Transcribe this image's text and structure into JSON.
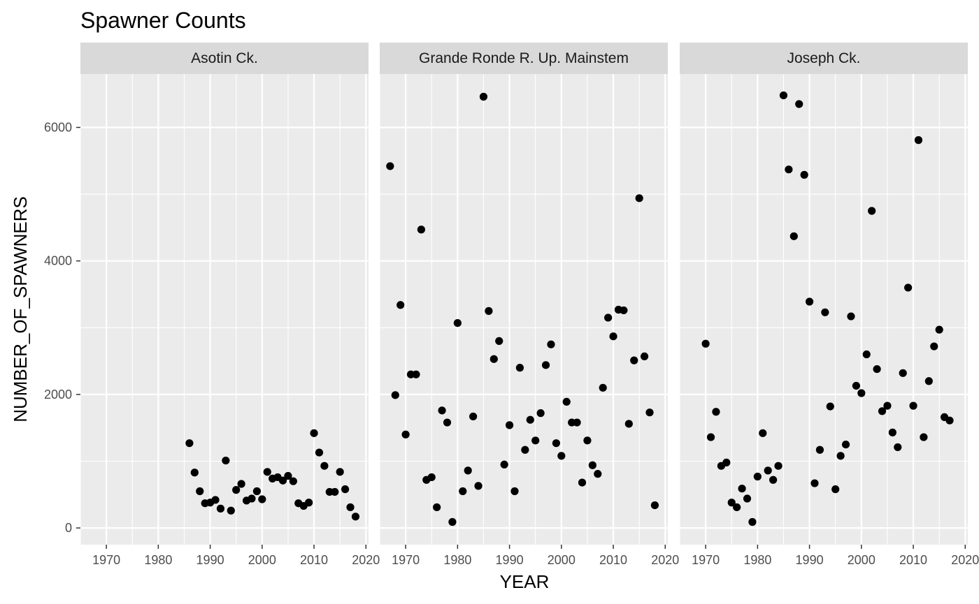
{
  "chart_data": {
    "type": "scatter",
    "title": "Spawner Counts",
    "xlabel": "YEAR",
    "ylabel": "NUMBER_OF_SPAWNERS",
    "xlim": [
      1965,
      2020.5
    ],
    "ylim": [
      -250,
      6800
    ],
    "x_ticks": [
      1970,
      1980,
      1990,
      2000,
      2010,
      2020
    ],
    "y_ticks": [
      0,
      2000,
      4000,
      6000
    ],
    "grid": true,
    "facets": [
      {
        "name": "Asotin Ck.",
        "points": [
          [
            1986,
            1270
          ],
          [
            1987,
            830
          ],
          [
            1988,
            550
          ],
          [
            1989,
            370
          ],
          [
            1990,
            380
          ],
          [
            1991,
            420
          ],
          [
            1992,
            290
          ],
          [
            1993,
            1010
          ],
          [
            1994,
            260
          ],
          [
            1995,
            570
          ],
          [
            1996,
            660
          ],
          [
            1997,
            410
          ],
          [
            1998,
            440
          ],
          [
            1999,
            550
          ],
          [
            2000,
            430
          ],
          [
            2001,
            840
          ],
          [
            2002,
            740
          ],
          [
            2003,
            760
          ],
          [
            2004,
            710
          ],
          [
            2005,
            780
          ],
          [
            2006,
            700
          ],
          [
            2007,
            370
          ],
          [
            2008,
            330
          ],
          [
            2009,
            380
          ],
          [
            2010,
            1420
          ],
          [
            2011,
            1130
          ],
          [
            2012,
            930
          ],
          [
            2013,
            540
          ],
          [
            2014,
            540
          ],
          [
            2015,
            840
          ],
          [
            2016,
            580
          ],
          [
            2017,
            310
          ],
          [
            2018,
            170
          ]
        ]
      },
      {
        "name": "Grande Ronde R. Up. Mainstem",
        "points": [
          [
            1967,
            5420
          ],
          [
            1968,
            1990
          ],
          [
            1969,
            3340
          ],
          [
            1970,
            1400
          ],
          [
            1971,
            2300
          ],
          [
            1972,
            2300
          ],
          [
            1973,
            4470
          ],
          [
            1974,
            720
          ],
          [
            1975,
            760
          ],
          [
            1976,
            310
          ],
          [
            1977,
            1760
          ],
          [
            1978,
            1580
          ],
          [
            1979,
            90
          ],
          [
            1980,
            3070
          ],
          [
            1981,
            550
          ],
          [
            1982,
            860
          ],
          [
            1983,
            1670
          ],
          [
            1984,
            630
          ],
          [
            1985,
            6460
          ],
          [
            1986,
            3250
          ],
          [
            1987,
            2530
          ],
          [
            1988,
            2800
          ],
          [
            1989,
            950
          ],
          [
            1990,
            1540
          ],
          [
            1991,
            550
          ],
          [
            1992,
            2400
          ],
          [
            1993,
            1170
          ],
          [
            1994,
            1620
          ],
          [
            1995,
            1310
          ],
          [
            1996,
            1720
          ],
          [
            1997,
            2440
          ],
          [
            1998,
            2750
          ],
          [
            1999,
            1270
          ],
          [
            2000,
            1080
          ],
          [
            2001,
            1890
          ],
          [
            2002,
            1580
          ],
          [
            2003,
            1580
          ],
          [
            2004,
            680
          ],
          [
            2005,
            1310
          ],
          [
            2006,
            940
          ],
          [
            2007,
            810
          ],
          [
            2008,
            2100
          ],
          [
            2009,
            3150
          ],
          [
            2010,
            2870
          ],
          [
            2011,
            3270
          ],
          [
            2012,
            3260
          ],
          [
            2013,
            1560
          ],
          [
            2014,
            2510
          ],
          [
            2015,
            4940
          ],
          [
            2016,
            2570
          ],
          [
            2017,
            1730
          ],
          [
            2018,
            340
          ]
        ]
      },
      {
        "name": "Joseph Ck.",
        "points": [
          [
            1970,
            2760
          ],
          [
            1971,
            1360
          ],
          [
            1972,
            1740
          ],
          [
            1973,
            930
          ],
          [
            1974,
            980
          ],
          [
            1975,
            380
          ],
          [
            1976,
            310
          ],
          [
            1977,
            590
          ],
          [
            1978,
            440
          ],
          [
            1979,
            90
          ],
          [
            1980,
            770
          ],
          [
            1981,
            1420
          ],
          [
            1982,
            860
          ],
          [
            1983,
            720
          ],
          [
            1984,
            930
          ],
          [
            1985,
            6480
          ],
          [
            1986,
            5370
          ],
          [
            1987,
            4370
          ],
          [
            1988,
            6350
          ],
          [
            1989,
            5290
          ],
          [
            1990,
            3390
          ],
          [
            1991,
            670
          ],
          [
            1992,
            1170
          ],
          [
            1993,
            3230
          ],
          [
            1994,
            1820
          ],
          [
            1995,
            580
          ],
          [
            1996,
            1080
          ],
          [
            1997,
            1250
          ],
          [
            1998,
            3170
          ],
          [
            1999,
            2130
          ],
          [
            2000,
            2020
          ],
          [
            2001,
            2600
          ],
          [
            2002,
            4750
          ],
          [
            2003,
            2380
          ],
          [
            2004,
            1750
          ],
          [
            2005,
            1830
          ],
          [
            2006,
            1430
          ],
          [
            2007,
            1210
          ],
          [
            2008,
            2320
          ],
          [
            2009,
            3600
          ],
          [
            2010,
            1830
          ],
          [
            2011,
            5810
          ],
          [
            2012,
            1360
          ],
          [
            2013,
            2200
          ],
          [
            2014,
            2720
          ],
          [
            2015,
            2970
          ],
          [
            2016,
            1660
          ],
          [
            2017,
            1610
          ]
        ]
      }
    ]
  }
}
